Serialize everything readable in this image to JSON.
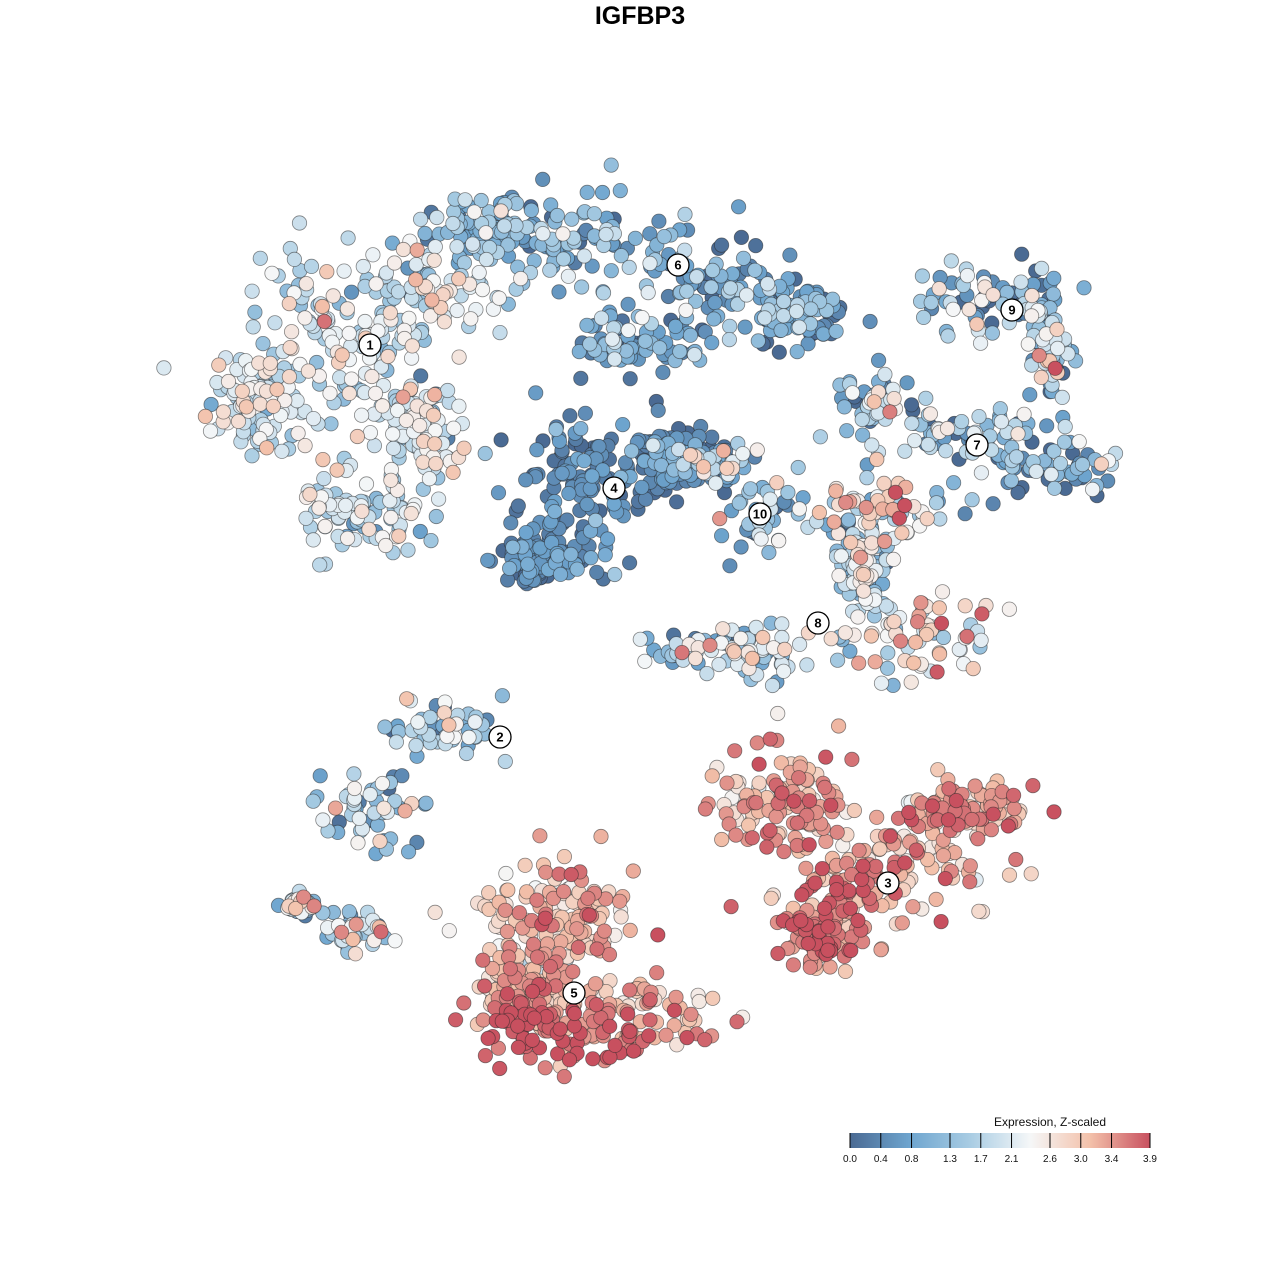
{
  "title": "IGFBP3",
  "chart_data": {
    "type": "scatter",
    "title": "IGFBP3",
    "xlabel": "",
    "ylabel": "",
    "grid": false,
    "color_scale": {
      "title": "Expression, Z-scaled",
      "min": 0.0,
      "max": 3.9,
      "ticks": [
        "0.0",
        "0.4",
        "0.8",
        "1.3",
        "1.7",
        "2.1",
        "2.6",
        "3.0",
        "3.4",
        "3.9"
      ],
      "colors": [
        "#4a6a93",
        "#6ea5cf",
        "#a8cce3",
        "#f5f7f8",
        "#f3c1aa",
        "#c8505f"
      ],
      "placement": "bottom-right"
    },
    "clusters": [
      {
        "label": "1",
        "mean_expression": 2.0
      },
      {
        "label": "2",
        "mean_expression": 1.5
      },
      {
        "label": "3",
        "mean_expression": 3.2
      },
      {
        "label": "4",
        "mean_expression": 0.4
      },
      {
        "label": "5",
        "mean_expression": 3.0
      },
      {
        "label": "6",
        "mean_expression": 1.0
      },
      {
        "label": "7",
        "mean_expression": 1.2
      },
      {
        "label": "8",
        "mean_expression": 1.8
      },
      {
        "label": "9",
        "mean_expression": 1.2
      },
      {
        "label": "10",
        "mean_expression": 1.3
      }
    ]
  }
}
